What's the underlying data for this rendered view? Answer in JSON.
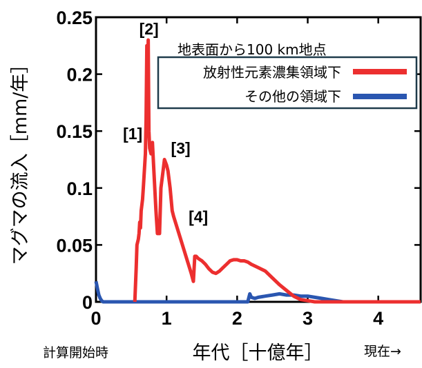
{
  "chart_data": {
    "type": "line",
    "title": "",
    "xlabel": "年代［十億年］",
    "ylabel": "マグマの流入［mm/年］",
    "xlim": [
      0,
      4.6
    ],
    "ylim": [
      0,
      0.25
    ],
    "x_ticks": [
      "0",
      "1",
      "2",
      "3",
      "4"
    ],
    "x_tick_values": [
      0,
      1,
      2,
      3,
      4
    ],
    "y_ticks": [
      "0",
      "0.05",
      "0.1",
      "0.15",
      "0.2",
      "0.25"
    ],
    "y_tick_values": [
      0,
      0.05,
      0.1,
      0.15,
      0.2,
      0.25
    ],
    "x_start_label": "計算開始時",
    "x_end_label": "現在→",
    "legend": {
      "title": "地表面から100 km地点",
      "placement": "top-right"
    },
    "series": [
      {
        "name": "放射性元素濃集領域下",
        "color": "#ec2f2f",
        "x": [
          0.55,
          0.57,
          0.58,
          0.6,
          0.61,
          0.62,
          0.63,
          0.64,
          0.65,
          0.66,
          0.67,
          0.68,
          0.69,
          0.7,
          0.71,
          0.72,
          0.73,
          0.74,
          0.75,
          0.76,
          0.78,
          0.8,
          0.82,
          0.85,
          0.87,
          0.9,
          0.92,
          0.95,
          0.97,
          1.0,
          1.02,
          1.05,
          1.08,
          1.1,
          1.15,
          1.2,
          1.25,
          1.3,
          1.35,
          1.38,
          1.4,
          1.42,
          1.45,
          1.5,
          1.55,
          1.6,
          1.65,
          1.7,
          1.75,
          1.8,
          1.85,
          1.9,
          1.95,
          2.0,
          2.05,
          2.1,
          2.15,
          2.2,
          2.3,
          2.4,
          2.5,
          2.6,
          2.7,
          2.8,
          2.9,
          3.0,
          3.1,
          3.2,
          3.3,
          3.4,
          3.5,
          4.6
        ],
        "values": [
          0.0,
          0.03,
          0.05,
          0.055,
          0.06,
          0.07,
          0.065,
          0.08,
          0.085,
          0.09,
          0.1,
          0.11,
          0.12,
          0.13,
          0.16,
          0.225,
          0.17,
          0.23,
          0.15,
          0.135,
          0.13,
          0.14,
          0.115,
          0.08,
          0.06,
          0.06,
          0.1,
          0.115,
          0.125,
          0.12,
          0.115,
          0.1,
          0.08,
          0.075,
          0.065,
          0.055,
          0.045,
          0.035,
          0.025,
          0.018,
          0.04,
          0.04,
          0.038,
          0.036,
          0.033,
          0.029,
          0.026,
          0.025,
          0.027,
          0.03,
          0.033,
          0.036,
          0.037,
          0.037,
          0.036,
          0.036,
          0.035,
          0.033,
          0.03,
          0.027,
          0.021,
          0.015,
          0.01,
          0.005,
          0.002,
          0.001,
          0.0,
          0.0,
          0.0,
          0.0,
          0.0,
          0.0
        ]
      },
      {
        "name": "その他の領域下",
        "color": "#2a56b0",
        "x": [
          0.0,
          0.02,
          0.04,
          0.06,
          0.08,
          0.1,
          0.15,
          0.5,
          1.0,
          1.5,
          2.0,
          2.15,
          2.18,
          2.2,
          2.25,
          2.3,
          2.4,
          2.5,
          2.6,
          2.7,
          2.8,
          2.9,
          3.0,
          3.1,
          3.2,
          3.3,
          3.4,
          3.5,
          3.6,
          4.0,
          4.6
        ],
        "values": [
          0.018,
          0.012,
          0.006,
          0.003,
          0.001,
          0.0,
          0.0,
          0.0,
          0.0,
          0.0,
          0.0,
          0.0,
          0.007,
          0.004,
          0.003,
          0.004,
          0.005,
          0.006,
          0.007,
          0.006,
          0.006,
          0.005,
          0.005,
          0.004,
          0.003,
          0.002,
          0.001,
          0.0,
          0.0,
          0.0,
          0.0
        ]
      }
    ],
    "annotations": [
      {
        "text": "[1]",
        "x": 0.52,
        "y": 0.143
      },
      {
        "text": "[2]",
        "x": 0.75,
        "y": 0.235
      },
      {
        "text": "[3]",
        "x": 1.2,
        "y": 0.13
      },
      {
        "text": "[4]",
        "x": 1.45,
        "y": 0.07
      }
    ]
  }
}
